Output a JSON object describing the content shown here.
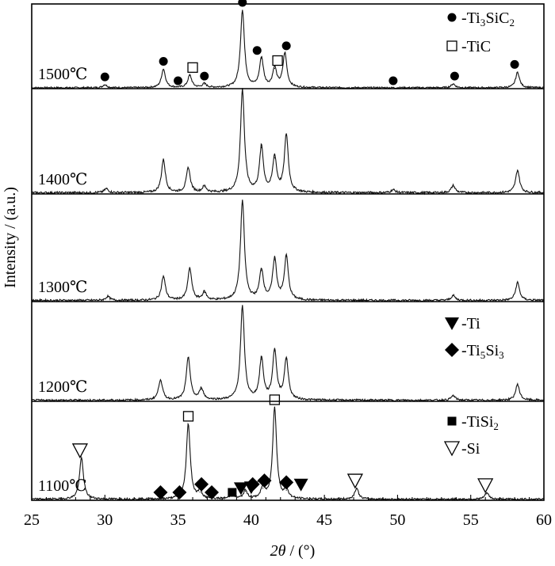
{
  "chart_data": {
    "type": "line",
    "xlabel_parts": {
      "italic": "2θ",
      "rest": " / (°)"
    },
    "ylabel": "Intensity / (a.u.)",
    "xlim": [
      25,
      60
    ],
    "xticks": [
      "25",
      "30",
      "35",
      "40",
      "45",
      "50",
      "55",
      "60"
    ],
    "panels": [
      {
        "label": "1500℃",
        "peaks": [
          [
            30.0,
            0.04
          ],
          [
            34.0,
            0.24
          ],
          [
            35.8,
            0.16
          ],
          [
            36.8,
            0.05
          ],
          [
            39.4,
            1.0
          ],
          [
            40.7,
            0.38
          ],
          [
            41.6,
            0.25
          ],
          [
            42.3,
            0.44
          ],
          [
            53.8,
            0.05
          ],
          [
            58.2,
            0.2
          ]
        ]
      },
      {
        "label": "1400℃",
        "peaks": [
          [
            30.1,
            0.04
          ],
          [
            34.0,
            0.32
          ],
          [
            35.7,
            0.24
          ],
          [
            36.8,
            0.06
          ],
          [
            39.4,
            1.0
          ],
          [
            40.7,
            0.44
          ],
          [
            41.6,
            0.34
          ],
          [
            42.4,
            0.56
          ],
          [
            49.7,
            0.03
          ],
          [
            53.8,
            0.07
          ],
          [
            58.2,
            0.22
          ]
        ]
      },
      {
        "label": "1300℃",
        "peaks": [
          [
            30.2,
            0.04
          ],
          [
            34.0,
            0.24
          ],
          [
            35.8,
            0.32
          ],
          [
            36.8,
            0.08
          ],
          [
            39.4,
            1.0
          ],
          [
            40.7,
            0.3
          ],
          [
            41.6,
            0.41
          ],
          [
            42.4,
            0.44
          ],
          [
            53.8,
            0.05
          ],
          [
            58.2,
            0.18
          ]
        ]
      },
      {
        "label": "1200℃",
        "peaks": [
          [
            33.8,
            0.22
          ],
          [
            35.7,
            0.46
          ],
          [
            36.6,
            0.12
          ],
          [
            39.4,
            1.0
          ],
          [
            40.7,
            0.44
          ],
          [
            41.6,
            0.53
          ],
          [
            42.4,
            0.44
          ],
          [
            53.8,
            0.05
          ],
          [
            58.2,
            0.17
          ]
        ]
      },
      {
        "label": "1100℃",
        "peaks": [
          [
            28.4,
            0.45
          ],
          [
            35.7,
            0.82
          ],
          [
            36.5,
            0.08
          ],
          [
            38.7,
            0.06
          ],
          [
            39.6,
            0.09
          ],
          [
            40.8,
            0.12
          ],
          [
            41.6,
            1.0
          ],
          [
            42.4,
            0.1
          ],
          [
            47.2,
            0.12
          ],
          [
            56.1,
            0.07
          ]
        ]
      }
    ],
    "markers": [
      {
        "panel": 0,
        "symbol": "circle",
        "x": 30.0,
        "y": 0.04
      },
      {
        "panel": 0,
        "symbol": "circle",
        "x": 34.0,
        "y": 0.24
      },
      {
        "panel": 0,
        "symbol": "circle",
        "x": 35.0,
        "y": 0.0
      },
      {
        "panel": 0,
        "symbol": "square",
        "x": 36.0,
        "y": 0.16
      },
      {
        "panel": 0,
        "symbol": "circle",
        "x": 36.8,
        "y": 0.05
      },
      {
        "panel": 0,
        "symbol": "circle",
        "x": 39.4,
        "y": 1.0
      },
      {
        "panel": 0,
        "symbol": "circle",
        "x": 40.4,
        "y": 0.38
      },
      {
        "panel": 0,
        "symbol": "square",
        "x": 41.8,
        "y": 0.25
      },
      {
        "panel": 0,
        "symbol": "circle",
        "x": 42.4,
        "y": 0.44
      },
      {
        "panel": 0,
        "symbol": "circle",
        "x": 49.7,
        "y": 0.0
      },
      {
        "panel": 0,
        "symbol": "circle",
        "x": 53.9,
        "y": 0.05
      },
      {
        "panel": 0,
        "symbol": "circle",
        "x": 58.0,
        "y": 0.2
      },
      {
        "panel": 4,
        "symbol": "triangle_open",
        "x": 28.3,
        "y": 0.45
      },
      {
        "panel": 4,
        "symbol": "square",
        "x": 35.7,
        "y": 0.82
      },
      {
        "panel": 4,
        "symbol": "square",
        "x": 41.6,
        "y": 1.0
      },
      {
        "panel": 4,
        "symbol": "triangle_open",
        "x": 47.1,
        "y": 0.12
      },
      {
        "panel": 4,
        "symbol": "triangle_open",
        "x": 56.0,
        "y": 0.07
      },
      {
        "panel": 4,
        "symbol": "diamond",
        "x": 33.8,
        "y": 0.0
      },
      {
        "panel": 4,
        "symbol": "diamond",
        "x": 35.1,
        "y": 0.0
      },
      {
        "panel": 4,
        "symbol": "diamond",
        "x": 36.6,
        "y": 0.08
      },
      {
        "panel": 4,
        "symbol": "diamond",
        "x": 37.3,
        "y": 0.0
      },
      {
        "panel": 4,
        "symbol": "small_square",
        "x": 38.7,
        "y": 0.0
      },
      {
        "panel": 4,
        "symbol": "triangle_down",
        "x": 39.3,
        "y": 0.04
      },
      {
        "panel": 4,
        "symbol": "triangle_down",
        "x": 40.0,
        "y": 0.05
      },
      {
        "panel": 4,
        "symbol": "diamond",
        "x": 40.1,
        "y": 0.08
      },
      {
        "panel": 4,
        "symbol": "diamond",
        "x": 40.9,
        "y": 0.12
      },
      {
        "panel": 4,
        "symbol": "diamond",
        "x": 42.4,
        "y": 0.1
      },
      {
        "panel": 4,
        "symbol": "triangle_down",
        "x": 43.4,
        "y": 0.08
      }
    ],
    "legends": [
      {
        "panel": 0,
        "items": [
          {
            "symbol": "circle",
            "pre": "-Ti",
            "sub1": "3",
            "mid": "SiC",
            "sub2": "2"
          },
          {
            "symbol": "square",
            "pre": "-TiC",
            "sub1": "",
            "mid": "",
            "sub2": ""
          }
        ]
      },
      {
        "panel": 3,
        "items": [
          {
            "symbol": "triangle_down",
            "pre": "-Ti",
            "sub1": "",
            "mid": "",
            "sub2": ""
          },
          {
            "symbol": "diamond",
            "pre": "-Ti",
            "sub1": "5",
            "mid": "Si",
            "sub2": "3"
          }
        ]
      },
      {
        "panel": 4,
        "items": [
          {
            "symbol": "small_square",
            "pre": "-TiSi",
            "sub1": "2",
            "mid": "",
            "sub2": ""
          },
          {
            "symbol": "triangle_open",
            "pre": "-Si",
            "sub1": "",
            "mid": "",
            "sub2": ""
          }
        ]
      }
    ]
  }
}
